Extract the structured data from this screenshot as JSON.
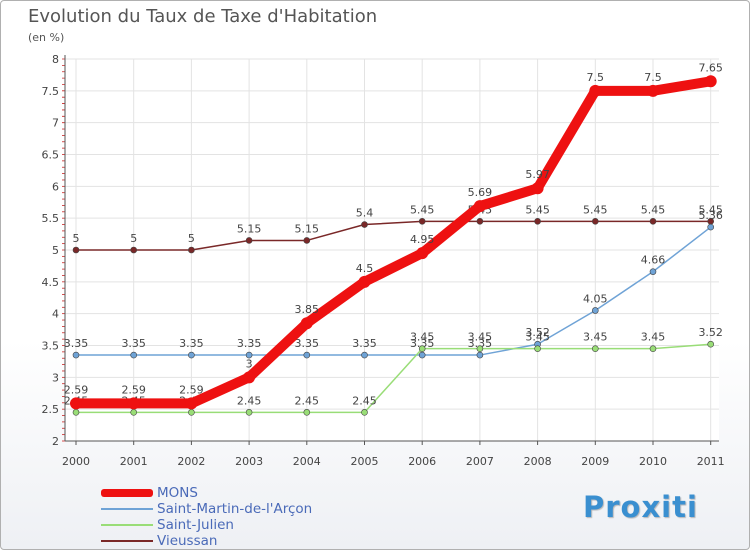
{
  "title": "Evolution du Taux de Taxe d'Habitation",
  "subtitle": "(en %)",
  "logo": "Proxiti",
  "chart_data": {
    "type": "line",
    "title": "Evolution du Taux de Taxe d'Habitation",
    "ylabel": "(en %)",
    "xlabel": "",
    "x": [
      "2000",
      "2001",
      "2002",
      "2003",
      "2004",
      "2005",
      "2006",
      "2007",
      "2008",
      "2009",
      "2010",
      "2011"
    ],
    "ylim": [
      2,
      8
    ],
    "yticks": [
      "2",
      "2.5",
      "3",
      "3.5",
      "4",
      "4.5",
      "5",
      "5.5",
      "6",
      "6.5",
      "7",
      "7.5",
      "8"
    ],
    "grid": true,
    "legend_position": "bottom-left",
    "series": [
      {
        "name": "MONS",
        "color": "#ee1111",
        "values": [
          2.59,
          2.59,
          2.59,
          3,
          3.85,
          4.5,
          4.95,
          5.69,
          5.97,
          7.5,
          7.5,
          7.65
        ],
        "labels": [
          "2.59",
          "2.59",
          "2.59",
          "3",
          "3.85",
          "4.5",
          "4.95",
          "5.69",
          "5.97",
          "7.5",
          "7.5",
          "7.65"
        ]
      },
      {
        "name": "Saint-Martin-de-l'Arçon",
        "color": "#6fa3d6",
        "values": [
          3.35,
          3.35,
          3.35,
          3.35,
          3.35,
          3.35,
          3.35,
          3.35,
          3.52,
          4.05,
          4.66,
          5.36
        ],
        "labels": [
          "3.35",
          "3.35",
          "3.35",
          "3.35",
          "3.35",
          "3.35",
          "3.35",
          "3.35",
          "3.52",
          "4.05",
          "4.66",
          "5.36"
        ]
      },
      {
        "name": "Saint-Julien",
        "color": "#99dd77",
        "values": [
          2.45,
          2.45,
          2.45,
          2.45,
          2.45,
          2.45,
          3.45,
          3.45,
          3.45,
          3.45,
          3.45,
          3.52
        ],
        "labels": [
          "2.45",
          "2.45",
          "2.45",
          "2.45",
          "2.45",
          "2.45",
          "3.45",
          "3.45",
          "3.45",
          "3.45",
          "3.45",
          "3.52"
        ]
      },
      {
        "name": "Vieussan",
        "color": "#7a2828",
        "values": [
          5,
          5,
          5,
          5.15,
          5.15,
          5.4,
          5.45,
          5.45,
          5.45,
          5.45,
          5.45,
          5.45
        ],
        "labels": [
          "5",
          "5",
          "5",
          "5.15",
          "5.15",
          "5.4",
          "5.45",
          "5.45",
          "5.45",
          "5.45",
          "5.45",
          "5.45"
        ]
      }
    ]
  }
}
